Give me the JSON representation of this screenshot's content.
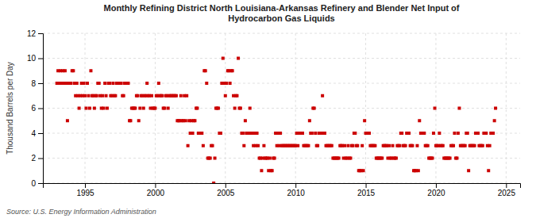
{
  "chart_data": {
    "type": "scatter",
    "title": "Monthly Refining District North Louisiana-Arkansas Refinery and Blender Net Input of\nHydrocarbon Gas Liquids",
    "ylabel": "Thousand Barrels per Day",
    "source": "Source: U.S. Energy Information Administration",
    "color": "#cc0000",
    "marker": "square",
    "grid": true,
    "xlim": [
      1992.0,
      2026.0
    ],
    "ylim": [
      0,
      12
    ],
    "xticks": [
      1995,
      2000,
      2005,
      2010,
      2015,
      2020,
      2025
    ],
    "yticks": [
      0,
      2,
      4,
      6,
      8,
      10,
      12
    ],
    "x": [
      1993.0,
      1993.08,
      1993.17,
      1993.25,
      1993.33,
      1993.42,
      1993.5,
      1993.58,
      1993.67,
      1993.75,
      1993.83,
      1993.92,
      1994.0,
      1994.08,
      1994.17,
      1994.25,
      1994.33,
      1994.42,
      1994.5,
      1994.58,
      1994.67,
      1994.75,
      1994.83,
      1994.92,
      1995.0,
      1995.08,
      1995.17,
      1995.25,
      1995.33,
      1995.42,
      1995.5,
      1995.58,
      1995.67,
      1995.75,
      1995.83,
      1995.92,
      1996.0,
      1996.08,
      1996.17,
      1996.25,
      1996.33,
      1996.42,
      1996.5,
      1996.58,
      1996.67,
      1996.75,
      1996.83,
      1996.92,
      1997.0,
      1997.08,
      1997.17,
      1997.25,
      1997.33,
      1997.42,
      1997.5,
      1997.58,
      1997.67,
      1997.75,
      1997.83,
      1997.92,
      1998.0,
      1998.08,
      1998.17,
      1998.25,
      1998.33,
      1998.42,
      1998.5,
      1998.58,
      1998.67,
      1998.75,
      1998.83,
      1998.92,
      1999.0,
      1999.08,
      1999.17,
      1999.25,
      1999.33,
      1999.42,
      1999.5,
      1999.58,
      1999.67,
      1999.75,
      1999.83,
      1999.92,
      2000.0,
      2000.08,
      2000.17,
      2000.25,
      2000.33,
      2000.42,
      2000.5,
      2000.58,
      2000.67,
      2000.75,
      2000.83,
      2000.92,
      2001.0,
      2001.08,
      2001.17,
      2001.25,
      2001.33,
      2001.42,
      2001.5,
      2001.58,
      2001.67,
      2001.75,
      2001.83,
      2001.92,
      2002.0,
      2002.08,
      2002.17,
      2002.25,
      2002.33,
      2002.42,
      2002.5,
      2002.58,
      2002.67,
      2002.75,
      2002.83,
      2002.92,
      2003.0,
      2003.08,
      2003.17,
      2003.25,
      2003.33,
      2003.42,
      2003.5,
      2003.58,
      2003.67,
      2003.75,
      2003.83,
      2003.92,
      2004.0,
      2004.08,
      2004.17,
      2004.25,
      2004.33,
      2004.42,
      2004.5,
      2004.58,
      2004.67,
      2004.75,
      2004.83,
      2004.92,
      2005.0,
      2005.08,
      2005.17,
      2005.25,
      2005.33,
      2005.42,
      2005.5,
      2005.58,
      2005.67,
      2005.75,
      2005.83,
      2005.92,
      2006.0,
      2006.08,
      2006.17,
      2006.25,
      2006.33,
      2006.42,
      2006.5,
      2006.58,
      2006.67,
      2006.75,
      2006.83,
      2006.92,
      2007.0,
      2007.08,
      2007.17,
      2007.25,
      2007.33,
      2007.42,
      2007.5,
      2007.58,
      2007.67,
      2007.75,
      2007.83,
      2007.92,
      2008.0,
      2008.08,
      2008.17,
      2008.25,
      2008.33,
      2008.42,
      2008.5,
      2008.58,
      2008.67,
      2008.75,
      2008.83,
      2008.92,
      2009.0,
      2009.08,
      2009.17,
      2009.25,
      2009.33,
      2009.42,
      2009.5,
      2009.58,
      2009.67,
      2009.75,
      2009.83,
      2009.92,
      2010.0,
      2010.08,
      2010.17,
      2010.25,
      2010.33,
      2010.42,
      2010.5,
      2010.58,
      2010.67,
      2010.75,
      2010.83,
      2010.92,
      2011.0,
      2011.08,
      2011.17,
      2011.25,
      2011.33,
      2011.42,
      2011.5,
      2011.58,
      2011.67,
      2011.75,
      2011.83,
      2011.92,
      2012.0,
      2012.08,
      2012.17,
      2012.25,
      2012.33,
      2012.42,
      2012.5,
      2012.58,
      2012.67,
      2012.75,
      2012.83,
      2012.92,
      2013.0,
      2013.08,
      2013.17,
      2013.25,
      2013.33,
      2013.42,
      2013.5,
      2013.58,
      2013.67,
      2013.75,
      2013.83,
      2013.92,
      2014.0,
      2014.08,
      2014.17,
      2014.25,
      2014.33,
      2014.42,
      2014.5,
      2014.58,
      2014.67,
      2014.75,
      2014.83,
      2014.92,
      2015.0,
      2015.08,
      2015.17,
      2015.25,
      2015.33,
      2015.42,
      2015.5,
      2015.58,
      2015.67,
      2015.75,
      2015.83,
      2015.92,
      2016.0,
      2016.08,
      2016.17,
      2016.25,
      2016.33,
      2016.42,
      2016.5,
      2016.58,
      2016.67,
      2016.75,
      2016.83,
      2016.92,
      2017.0,
      2017.08,
      2017.17,
      2017.25,
      2017.33,
      2017.42,
      2017.5,
      2017.58,
      2017.67,
      2017.75,
      2017.83,
      2017.92,
      2018.0,
      2018.08,
      2018.17,
      2018.25,
      2018.33,
      2018.42,
      2018.5,
      2018.58,
      2018.67,
      2018.75,
      2018.83,
      2018.92,
      2019.0,
      2019.08,
      2019.17,
      2019.25,
      2019.33,
      2019.42,
      2019.5,
      2019.58,
      2019.67,
      2019.75,
      2019.83,
      2019.92,
      2020.0,
      2020.08,
      2020.17,
      2020.25,
      2020.33,
      2020.42,
      2020.5,
      2020.58,
      2020.67,
      2020.75,
      2020.83,
      2020.92,
      2021.0,
      2021.08,
      2021.17,
      2021.25,
      2021.33,
      2021.42,
      2021.5,
      2021.58,
      2021.67,
      2021.75,
      2021.83,
      2021.92,
      2022.0,
      2022.08,
      2022.17,
      2022.25,
      2022.33,
      2022.42,
      2022.5,
      2022.58,
      2022.67,
      2022.75,
      2022.83,
      2022.92,
      2023.0,
      2023.08,
      2023.17,
      2023.25,
      2023.33,
      2023.42,
      2023.5,
      2023.58,
      2023.67,
      2023.75,
      2023.83,
      2023.92,
      2024.0,
      2024.08,
      2024.17,
      2024.25
    ],
    "values": [
      8,
      9,
      8,
      9,
      8,
      9,
      8,
      9,
      8,
      5,
      8,
      8,
      8,
      9,
      9,
      8,
      7,
      8,
      7,
      6,
      7,
      8,
      7,
      8,
      7,
      6,
      8,
      7,
      6,
      9,
      7,
      7,
      6,
      7,
      7,
      8,
      8,
      7,
      6,
      7,
      6,
      8,
      7,
      6,
      8,
      8,
      7,
      7,
      8,
      7,
      7,
      8,
      8,
      8,
      8,
      8,
      7,
      7,
      8,
      8,
      8,
      8,
      5,
      5,
      6,
      6,
      6,
      6,
      7,
      7,
      5,
      6,
      7,
      7,
      6,
      7,
      7,
      8,
      7,
      7,
      6,
      7,
      6,
      6,
      6,
      7,
      7,
      8,
      7,
      7,
      7,
      6,
      6,
      7,
      7,
      6,
      7,
      7,
      7,
      7,
      7,
      7,
      7,
      5,
      5,
      5,
      7,
      5,
      5,
      7,
      5,
      7,
      3,
      5,
      4,
      5,
      4,
      5,
      5,
      6,
      6,
      4,
      4,
      4,
      4,
      3,
      9,
      9,
      8,
      2,
      2,
      2,
      3,
      3,
      0,
      2,
      6,
      6,
      6,
      4,
      4,
      8,
      10,
      8,
      7,
      8,
      9,
      9,
      8,
      9,
      9,
      7,
      6,
      7,
      7,
      10,
      6,
      6,
      4,
      4,
      3,
      5,
      4,
      4,
      4,
      6,
      4,
      4,
      3,
      4,
      3,
      4,
      3,
      2,
      2,
      1,
      2,
      3,
      2,
      2,
      2,
      1,
      2,
      1,
      1,
      2,
      2,
      4,
      3,
      4,
      3,
      4,
      3,
      3,
      3,
      3,
      3,
      3,
      3,
      3,
      3,
      3,
      3,
      3,
      3,
      4,
      3,
      4,
      4,
      4,
      4,
      3,
      3,
      3,
      3,
      3,
      5,
      4,
      4,
      6,
      6,
      4,
      3,
      3,
      4,
      4,
      4,
      7,
      4,
      4,
      3,
      3,
      3,
      3,
      3,
      3,
      2,
      2,
      2,
      2,
      2,
      2,
      3,
      3,
      3,
      2,
      3,
      2,
      2,
      3,
      2,
      2,
      3,
      3,
      4,
      4,
      3,
      3,
      1,
      1,
      1,
      3,
      1,
      5,
      4,
      4,
      4,
      4,
      3,
      3,
      3,
      3,
      3,
      2,
      2,
      2,
      2,
      2,
      2,
      3,
      3,
      3,
      3,
      2,
      3,
      2,
      2,
      3,
      2,
      2,
      2,
      3,
      3,
      3,
      4,
      4,
      3,
      3,
      3,
      4,
      4,
      4,
      3,
      3,
      3,
      1,
      1,
      1,
      3,
      1,
      5,
      4,
      4,
      4,
      4,
      3,
      3,
      3,
      2,
      2,
      2,
      2,
      4,
      6,
      3,
      3,
      3,
      4,
      3,
      3,
      3,
      2,
      2,
      2,
      2,
      2,
      2,
      3,
      3,
      3,
      4,
      2,
      2,
      4,
      6,
      3,
      3,
      3,
      3,
      3,
      4,
      4,
      1,
      3,
      3,
      3,
      3,
      3,
      4,
      4,
      4,
      3,
      3,
      3,
      3,
      4,
      4,
      4,
      3,
      1,
      3,
      4,
      4,
      4,
      5,
      6
    ]
  }
}
